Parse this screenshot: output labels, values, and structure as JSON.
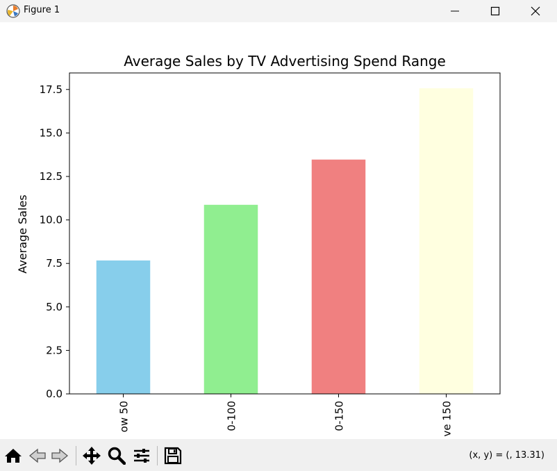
{
  "window": {
    "title": "Figure 1",
    "icon": "matplotlib-logo-icon",
    "controls": [
      "minimize-icon",
      "maximize-icon",
      "close-icon"
    ]
  },
  "toolbar": {
    "tools": [
      "home-icon",
      "back-arrow-icon",
      "forward-arrow-icon",
      "pan-move-icon",
      "zoom-magnifier-icon",
      "configure-subplots-icon",
      "save-disk-icon"
    ],
    "coords_text": "(x, y) = (, 13.31)"
  },
  "chart_data": {
    "type": "bar",
    "title": "Average Sales by TV Advertising Spend Range",
    "xlabel": "",
    "ylabel": "Average Sales",
    "categories": [
      "ow 50",
      "0-100",
      "0-150",
      "ve 150"
    ],
    "values": [
      7.67,
      10.87,
      13.47,
      17.57
    ],
    "colors": [
      "#87ceeb",
      "#90ee90",
      "#f08080",
      "#ffffe0"
    ],
    "ylim": [
      0,
      18.45
    ],
    "yticks": [
      "0.0",
      "2.5",
      "5.0",
      "7.5",
      "10.0",
      "12.5",
      "15.0",
      "17.5"
    ],
    "ytick_values": [
      0,
      2.5,
      5,
      7.5,
      10,
      12.5,
      15,
      17.5
    ],
    "grid": false,
    "legend": "none"
  }
}
